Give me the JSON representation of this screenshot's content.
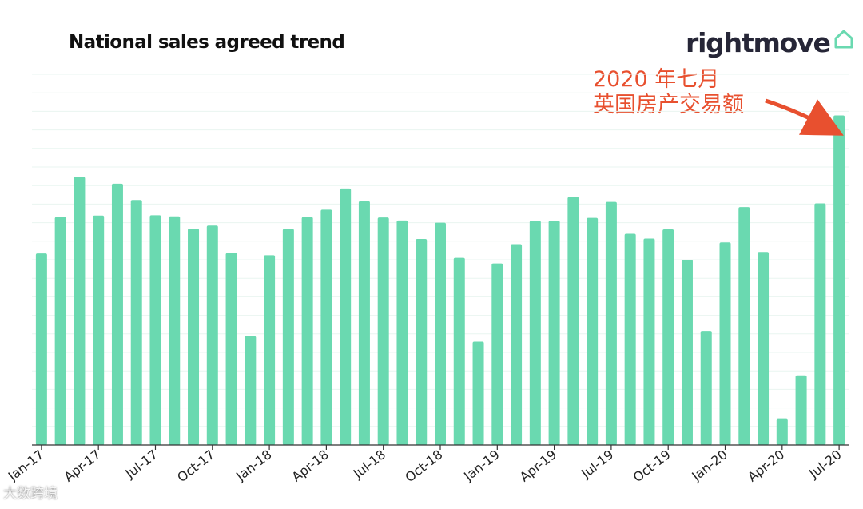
{
  "logo": {
    "text": "rightmove"
  },
  "annotation": {
    "line1": "2020 年七月",
    "line2": "英国房产交易额"
  },
  "watermark": {
    "text": "大数跨境"
  },
  "colors": {
    "bar": "#6ad9b0",
    "grid": "#e9f5f0",
    "axis": "#333333",
    "annotation": "#e8502f",
    "logo_icon": "#6ad9b0"
  },
  "chart_data": {
    "type": "bar",
    "title": "National sales agreed trend",
    "xlabel": "",
    "ylabel": "",
    "grid": true,
    "y_ticks_shown": false,
    "categories": [
      "Jan-17",
      "Feb-17",
      "Mar-17",
      "Apr-17",
      "May-17",
      "Jun-17",
      "Jul-17",
      "Aug-17",
      "Sep-17",
      "Oct-17",
      "Nov-17",
      "Dec-17",
      "Jan-18",
      "Feb-18",
      "Mar-18",
      "Apr-18",
      "May-18",
      "Jun-18",
      "Jul-18",
      "Aug-18",
      "Sep-18",
      "Oct-18",
      "Nov-18",
      "Dec-18",
      "Jan-19",
      "Feb-19",
      "Mar-19",
      "Apr-19",
      "May-19",
      "Jun-19",
      "Jul-19",
      "Aug-19",
      "Sep-19",
      "Oct-19",
      "Nov-19",
      "Dec-19",
      "Jan-20",
      "Feb-20",
      "Mar-20",
      "Apr-20",
      "May-20",
      "Jun-20",
      "Jul-20"
    ],
    "x_tick_labels": [
      "Jan-17",
      "Apr-17",
      "Jul-17",
      "Oct-17",
      "Jan-18",
      "Apr-18",
      "Jul-18",
      "Oct-18",
      "Jan-19",
      "Apr-19",
      "Jul-19",
      "Oct-19",
      "Jan-20",
      "Apr-20",
      "Jul-20"
    ],
    "values": [
      51.7,
      61.5,
      72.3,
      61.9,
      70.5,
      66.1,
      62.0,
      61.7,
      58.4,
      59.2,
      51.8,
      29.4,
      51.2,
      58.3,
      61.5,
      63.5,
      69.2,
      65.8,
      61.4,
      60.6,
      55.6,
      60.0,
      50.5,
      27.9,
      49.0,
      54.2,
      60.5,
      60.5,
      66.9,
      61.3,
      65.6,
      57.0,
      55.7,
      58.2,
      50.0,
      30.8,
      54.7,
      64.2,
      52.1,
      7.2,
      18.8,
      65.2,
      88.9
    ],
    "ylim": [
      0,
      100
    ]
  }
}
